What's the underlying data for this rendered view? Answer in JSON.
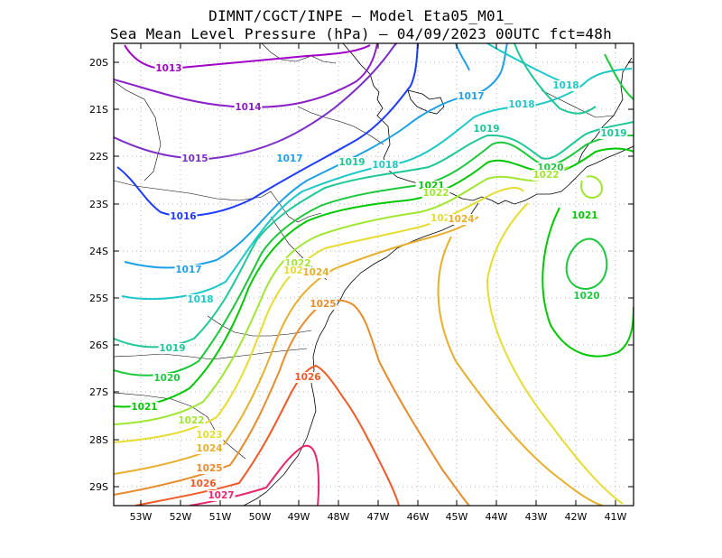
{
  "title_line1": "DIMNT/CGCT/INPE –  Model Eta05_M01_",
  "title_line2": "Sea Mean Level Pressure (hPa) – 04/09/2023 00UTC fct=48h",
  "lat_ticks": [
    "20S",
    "21S",
    "22S",
    "23S",
    "24S",
    "25S",
    "26S",
    "27S",
    "28S",
    "29S"
  ],
  "lon_ticks": [
    "53W",
    "52W",
    "51W",
    "50W",
    "49W",
    "48W",
    "47W",
    "46W",
    "45W",
    "44W",
    "43W",
    "42W",
    "41W"
  ],
  "contour_colors": {
    "1013": "#a000c8",
    "1014": "#8c1ec8",
    "1015": "#7d2dc8",
    "1016": "#1e3cff",
    "1017": "#1ea0e6",
    "1018": "#1ec8c8",
    "1019": "#1ec896",
    "1020": "#1ec83c",
    "1021": "#00c800",
    "1022": "#a0e632",
    "1023": "#e6dc32",
    "1024": "#e6af2d",
    "1025": "#e68c2d",
    "1026": "#f05a28",
    "1027": "#e6286e"
  },
  "contour_labels": [
    {
      "text": "1013",
      "level": "1013"
    },
    {
      "text": "1014",
      "level": "1014"
    },
    {
      "text": "1015",
      "level": "1015"
    },
    {
      "text": "1016",
      "level": "1016"
    },
    {
      "text": "1017",
      "level": "1017"
    },
    {
      "text": "1017",
      "level": "1017"
    },
    {
      "text": "1017",
      "level": "1017"
    },
    {
      "text": "1018",
      "level": "1018"
    },
    {
      "text": "1018",
      "level": "1018"
    },
    {
      "text": "1018",
      "level": "1018"
    },
    {
      "text": "1018",
      "level": "1018"
    },
    {
      "text": "1019",
      "level": "1019"
    },
    {
      "text": "1019",
      "level": "1019"
    },
    {
      "text": "1019",
      "level": "1019"
    },
    {
      "text": "1019",
      "level": "1019"
    },
    {
      "text": "1020",
      "level": "1020"
    },
    {
      "text": "1020",
      "level": "1020"
    },
    {
      "text": "1020",
      "level": "1020"
    },
    {
      "text": "1020",
      "level": "1020"
    },
    {
      "text": "1021",
      "level": "1021"
    },
    {
      "text": "1021",
      "level": "1021"
    },
    {
      "text": "1021",
      "level": "1021"
    },
    {
      "text": "1022",
      "level": "1022"
    },
    {
      "text": "1022",
      "level": "1022"
    },
    {
      "text": "1022",
      "level": "1022"
    },
    {
      "text": "1022",
      "level": "1022"
    },
    {
      "text": "102",
      "level": "1023"
    },
    {
      "text": "102",
      "level": "1023"
    },
    {
      "text": "1023",
      "level": "1023"
    },
    {
      "text": "1024",
      "level": "1024"
    },
    {
      "text": "1024",
      "level": "1024"
    },
    {
      "text": "1024",
      "level": "1024"
    },
    {
      "text": "1025",
      "level": "1025"
    },
    {
      "text": "1025",
      "level": "1025"
    },
    {
      "text": "1026",
      "level": "1026"
    },
    {
      "text": "1026",
      "level": "1026"
    },
    {
      "text": "1027",
      "level": "1027"
    }
  ]
}
